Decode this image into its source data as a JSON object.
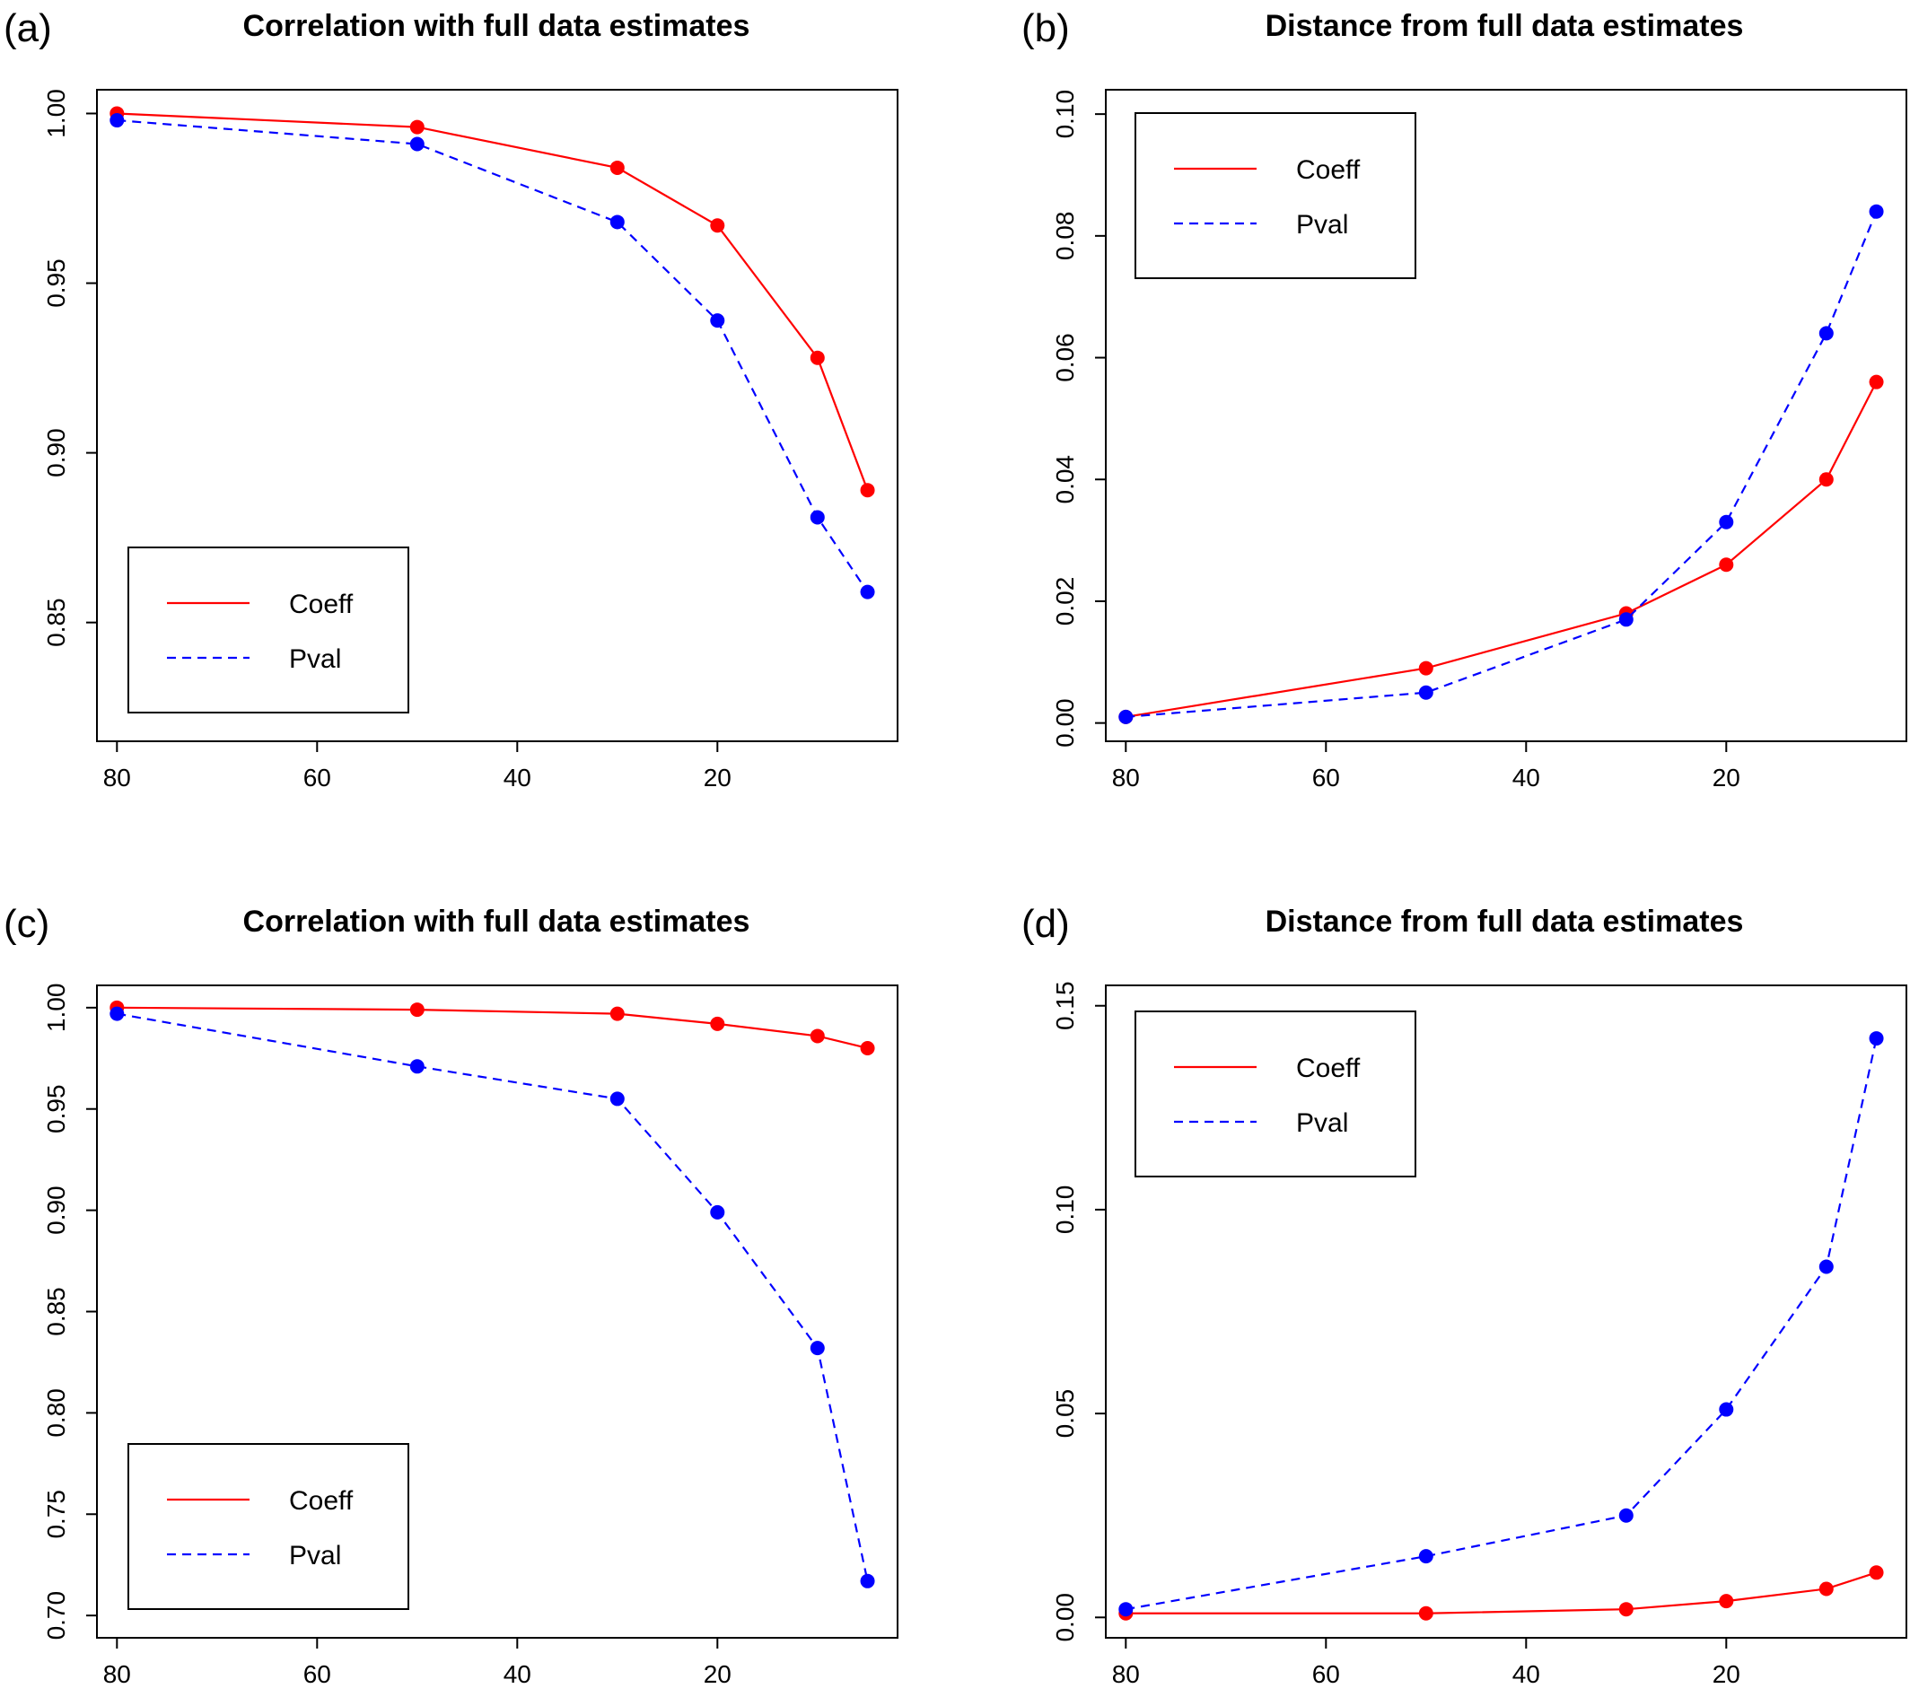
{
  "colors": {
    "coeff": "#ff0000",
    "pval": "#0000ff",
    "frame": "#000000",
    "background": "#ffffff"
  },
  "chart_data": [
    {
      "id": "a",
      "panel_label": "(a)",
      "type": "line",
      "title": "Correlation with full data estimates",
      "xlabel": "",
      "ylabel": "",
      "x": [
        80,
        50,
        30,
        20,
        10,
        5
      ],
      "xlim": [
        82,
        2
      ],
      "xticks": [
        "80",
        "60",
        "40",
        "20"
      ],
      "ylim": [
        0.815,
        1.007
      ],
      "yticks": [
        "0.85",
        "0.90",
        "0.95",
        "1.00"
      ],
      "legend": "bottom-left",
      "grid": false,
      "series": [
        {
          "name": "Coeff",
          "style": "solid",
          "color": "#ff0000",
          "values": [
            1.0,
            0.996,
            0.984,
            0.967,
            0.928,
            0.889
          ]
        },
        {
          "name": "Pval",
          "style": "dashed",
          "color": "#0000ff",
          "values": [
            0.998,
            0.991,
            0.968,
            0.939,
            0.881,
            0.859
          ]
        }
      ]
    },
    {
      "id": "b",
      "panel_label": "(b)",
      "type": "line",
      "title": "Distance from full data estimates",
      "xlabel": "",
      "ylabel": "",
      "x": [
        80,
        50,
        30,
        20,
        10,
        5
      ],
      "xlim": [
        82,
        2
      ],
      "xticks": [
        "80",
        "60",
        "40",
        "20"
      ],
      "ylim": [
        -0.003,
        0.104
      ],
      "yticks": [
        "0.00",
        "0.02",
        "0.04",
        "0.06",
        "0.08",
        "0.10"
      ],
      "legend": "top-left",
      "grid": false,
      "series": [
        {
          "name": "Coeff",
          "style": "solid",
          "color": "#ff0000",
          "values": [
            0.001,
            0.009,
            0.018,
            0.026,
            0.04,
            0.056
          ]
        },
        {
          "name": "Pval",
          "style": "dashed",
          "color": "#0000ff",
          "values": [
            0.001,
            0.005,
            0.017,
            0.033,
            0.064,
            0.084
          ]
        }
      ]
    },
    {
      "id": "c",
      "panel_label": "(c)",
      "type": "line",
      "title": "Correlation with full data estimates",
      "xlabel": "",
      "ylabel": "",
      "x": [
        80,
        50,
        30,
        20,
        10,
        5
      ],
      "xlim": [
        82,
        2
      ],
      "xticks": [
        "80",
        "60",
        "40",
        "20"
      ],
      "ylim": [
        0.689,
        1.011
      ],
      "yticks": [
        "0.70",
        "0.75",
        "0.80",
        "0.85",
        "0.90",
        "0.95",
        "1.00"
      ],
      "legend": "bottom-left",
      "grid": false,
      "series": [
        {
          "name": "Coeff",
          "style": "solid",
          "color": "#ff0000",
          "values": [
            1.0,
            0.999,
            0.997,
            0.992,
            0.986,
            0.98
          ]
        },
        {
          "name": "Pval",
          "style": "dashed",
          "color": "#0000ff",
          "values": [
            0.997,
            0.971,
            0.955,
            0.899,
            0.832,
            0.717
          ]
        }
      ]
    },
    {
      "id": "d",
      "panel_label": "(d)",
      "type": "line",
      "title": "Distance from full data estimates",
      "xlabel": "",
      "ylabel": "",
      "x": [
        80,
        50,
        30,
        20,
        10,
        5
      ],
      "xlim": [
        82,
        2
      ],
      "xticks": [
        "80",
        "60",
        "40",
        "20"
      ],
      "ylim": [
        -0.005,
        0.155
      ],
      "yticks": [
        "0.00",
        "0.05",
        "0.10",
        "0.15"
      ],
      "legend": "top-left",
      "grid": false,
      "series": [
        {
          "name": "Coeff",
          "style": "solid",
          "color": "#ff0000",
          "values": [
            0.001,
            0.001,
            0.002,
            0.004,
            0.007,
            0.011
          ]
        },
        {
          "name": "Pval",
          "style": "dashed",
          "color": "#0000ff",
          "values": [
            0.002,
            0.015,
            0.025,
            0.051,
            0.086,
            0.142
          ]
        }
      ]
    }
  ]
}
